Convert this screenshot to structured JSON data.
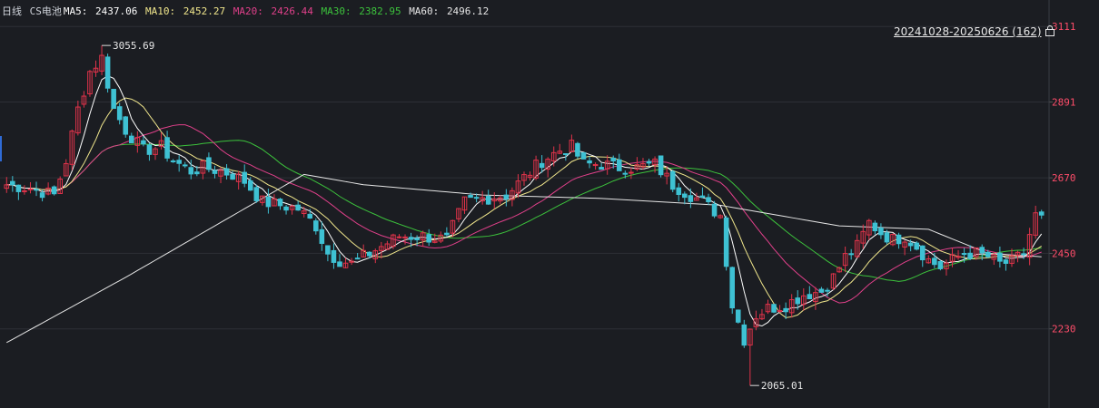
{
  "header": {
    "period": "日线",
    "symbol": "CS电池",
    "ma5_label": "MA5:",
    "ma5_value": "2437.06",
    "ma10_label": "MA10:",
    "ma10_value": "2452.27",
    "ma20_label": "MA20:",
    "ma20_value": "2426.44",
    "ma30_label": "MA30:",
    "ma30_value": "2382.95",
    "ma60_label": "MA60:",
    "ma60_value": "2496.12"
  },
  "range_label": "20241028-20250626 (162)",
  "colors": {
    "background": "#1b1d22",
    "up": "#e0334a",
    "down": "#3ec1d3",
    "ma5": "#ffffff",
    "ma10": "#f0e68c",
    "ma20": "#e0408a",
    "ma30": "#3cc23c",
    "ma60": "#e6e6e6",
    "axis_text": "#ff4d6a",
    "grid": "#2c2f36"
  },
  "chart_data": {
    "type": "candlestick",
    "title": "CS电池",
    "period": "daily",
    "date_range": [
      "2024-10-28",
      "2025-06-26"
    ],
    "bar_count": 162,
    "ylim": [
      2010,
      3130
    ],
    "yticks": [
      3111,
      2891,
      2670,
      2450,
      2230
    ],
    "grid": true,
    "annotations": [
      {
        "label": "3055.69",
        "type": "high",
        "value": 3055.69
      },
      {
        "label": "2065.01",
        "type": "low",
        "value": 2065.01
      }
    ],
    "ma_latest": {
      "MA5": 2437.06,
      "MA10": 2452.27,
      "MA20": 2426.44,
      "MA30": 2382.95,
      "MA60": 2496.12
    },
    "anchors": [
      [
        0,
        2650
      ],
      [
        4,
        2640
      ],
      [
        8,
        2620
      ],
      [
        10,
        2720
      ],
      [
        12,
        2870
      ],
      [
        14,
        2980
      ],
      [
        16,
        3020
      ],
      [
        18,
        2870
      ],
      [
        20,
        2810
      ],
      [
        23,
        2750
      ],
      [
        26,
        2760
      ],
      [
        28,
        2720
      ],
      [
        31,
        2690
      ],
      [
        33,
        2700
      ],
      [
        36,
        2690
      ],
      [
        38,
        2680
      ],
      [
        40,
        2660
      ],
      [
        43,
        2600
      ],
      [
        46,
        2590
      ],
      [
        49,
        2580
      ],
      [
        52,
        2530
      ],
      [
        54,
        2450
      ],
      [
        56,
        2430
      ],
      [
        58,
        2420
      ],
      [
        60,
        2440
      ],
      [
        63,
        2470
      ],
      [
        66,
        2500
      ],
      [
        70,
        2500
      ],
      [
        74,
        2490
      ],
      [
        77,
        2600
      ],
      [
        80,
        2610
      ],
      [
        84,
        2620
      ],
      [
        87,
        2670
      ],
      [
        90,
        2720
      ],
      [
        93,
        2750
      ],
      [
        95,
        2760
      ],
      [
        97,
        2710
      ],
      [
        100,
        2710
      ],
      [
        103,
        2700
      ],
      [
        106,
        2700
      ],
      [
        109,
        2710
      ],
      [
        112,
        2650
      ],
      [
        115,
        2620
      ],
      [
        117,
        2600
      ],
      [
        120,
        2560
      ],
      [
        122,
        2300
      ],
      [
        124,
        2200
      ],
      [
        126,
        2270
      ],
      [
        128,
        2290
      ],
      [
        131,
        2300
      ],
      [
        134,
        2330
      ],
      [
        137,
        2340
      ],
      [
        139,
        2380
      ],
      [
        141,
        2440
      ],
      [
        143,
        2470
      ],
      [
        145,
        2540
      ],
      [
        147,
        2510
      ],
      [
        149,
        2490
      ],
      [
        151,
        2500
      ],
      [
        153,
        2470
      ],
      [
        155,
        2430
      ],
      [
        157,
        2410
      ],
      [
        159,
        2430
      ],
      [
        161,
        2450
      ],
      [
        163,
        2450
      ],
      [
        165,
        2440
      ],
      [
        167,
        2420
      ],
      [
        169,
        2425
      ],
      [
        171,
        2450
      ],
      [
        173,
        2560
      ],
      [
        174,
        2550
      ]
    ],
    "ma60_anchors": [
      [
        0,
        2190
      ],
      [
        20,
        2380
      ],
      [
        40,
        2580
      ],
      [
        50,
        2680
      ],
      [
        60,
        2650
      ],
      [
        80,
        2620
      ],
      [
        100,
        2610
      ],
      [
        120,
        2590
      ],
      [
        140,
        2530
      ],
      [
        155,
        2520
      ],
      [
        165,
        2450
      ],
      [
        174,
        2440
      ]
    ]
  }
}
